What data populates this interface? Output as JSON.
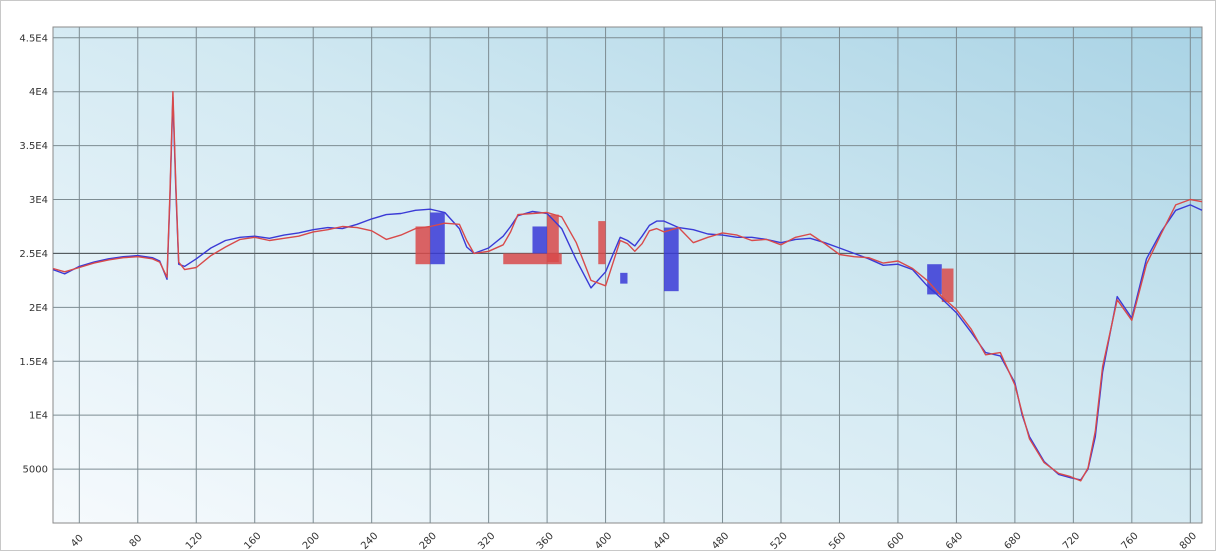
{
  "chart_data": {
    "type": "line",
    "title": "",
    "xlabel": "",
    "ylabel": "",
    "xlim": [
      22,
      808
    ],
    "ylim": [
      0,
      46000
    ],
    "grid": true,
    "legend": "none",
    "x_ticks": [
      "40",
      "80",
      "120",
      "160",
      "200",
      "240",
      "280",
      "320",
      "360",
      "400",
      "440",
      "480",
      "520",
      "560",
      "600",
      "640",
      "680",
      "720",
      "760",
      "800"
    ],
    "y_ticks": [
      "5000",
      "1E4",
      "1.5E4",
      "2E4",
      "2.5E4",
      "3E4",
      "3.5E4",
      "4E4",
      "4.5E4"
    ],
    "reference_line": 25000,
    "series": [
      {
        "color": "#3a3ad6",
        "x": [
          22,
          30,
          40,
          50,
          60,
          70,
          80,
          90,
          95,
          100,
          102,
          104,
          106,
          108,
          112,
          120,
          130,
          140,
          150,
          160,
          170,
          180,
          190,
          200,
          210,
          220,
          230,
          240,
          250,
          260,
          270,
          280,
          290,
          300,
          305,
          310,
          320,
          330,
          335,
          340,
          350,
          360,
          370,
          380,
          390,
          400,
          410,
          415,
          420,
          425,
          430,
          435,
          440,
          450,
          460,
          470,
          480,
          490,
          500,
          510,
          520,
          530,
          540,
          550,
          560,
          570,
          580,
          590,
          600,
          610,
          620,
          630,
          640,
          650,
          660,
          670,
          680,
          685,
          690,
          700,
          710,
          718,
          725,
          730,
          735,
          740,
          750,
          760,
          770,
          780,
          790,
          800,
          808
        ],
        "y": [
          23500,
          23100,
          23800,
          24200,
          24500,
          24700,
          24800,
          24600,
          24300,
          22600,
          30000,
          39500,
          31000,
          24000,
          23800,
          24500,
          25500,
          26200,
          26500,
          26600,
          26400,
          26700,
          26900,
          27200,
          27400,
          27300,
          27700,
          28200,
          28600,
          28700,
          29000,
          29100,
          28800,
          27300,
          25600,
          25000,
          25500,
          26600,
          27500,
          28500,
          28900,
          28700,
          27300,
          24400,
          21800,
          23300,
          26500,
          26200,
          25700,
          26600,
          27600,
          28000,
          28000,
          27400,
          27200,
          26800,
          26700,
          26500,
          26500,
          26300,
          26000,
          26300,
          26400,
          26000,
          25500,
          25000,
          24500,
          23900,
          24000,
          23500,
          22000,
          20800,
          19500,
          17700,
          15800,
          15500,
          13000,
          10000,
          8000,
          5700,
          4500,
          4200,
          4000,
          5000,
          8000,
          14000,
          21000,
          19000,
          24500,
          27000,
          29000,
          29500,
          29000
        ]
      },
      {
        "color": "#d84a4a",
        "x": [
          22,
          30,
          40,
          50,
          60,
          70,
          80,
          90,
          95,
          100,
          102,
          104,
          106,
          108,
          112,
          120,
          130,
          140,
          150,
          160,
          170,
          180,
          190,
          200,
          210,
          220,
          230,
          240,
          250,
          260,
          270,
          280,
          290,
          300,
          305,
          310,
          320,
          330,
          335,
          340,
          350,
          360,
          370,
          380,
          390,
          400,
          410,
          415,
          420,
          425,
          430,
          435,
          440,
          450,
          460,
          470,
          480,
          490,
          500,
          510,
          520,
          530,
          540,
          550,
          560,
          570,
          580,
          590,
          600,
          610,
          620,
          630,
          640,
          650,
          660,
          670,
          680,
          685,
          690,
          700,
          710,
          718,
          725,
          730,
          735,
          740,
          750,
          760,
          770,
          780,
          790,
          800,
          808
        ],
        "y": [
          23600,
          23300,
          23700,
          24100,
          24400,
          24600,
          24700,
          24500,
          24200,
          22800,
          30500,
          40000,
          31500,
          24200,
          23500,
          23700,
          24800,
          25600,
          26300,
          26500,
          26200,
          26400,
          26600,
          27000,
          27200,
          27500,
          27400,
          27100,
          26300,
          26700,
          27300,
          27500,
          27800,
          27700,
          26200,
          25000,
          25200,
          25800,
          27000,
          28600,
          28700,
          28800,
          28400,
          26000,
          22500,
          22000,
          26200,
          25900,
          25200,
          25900,
          27100,
          27300,
          27000,
          27400,
          26000,
          26500,
          26900,
          26700,
          26200,
          26300,
          25800,
          26500,
          26800,
          25900,
          24900,
          24700,
          24600,
          24100,
          24300,
          23600,
          22500,
          21000,
          19800,
          18000,
          15600,
          15800,
          12800,
          10200,
          7800,
          5600,
          4600,
          4300,
          3900,
          5100,
          8500,
          14500,
          20700,
          18800,
          24000,
          26800,
          29500,
          30000,
          29800
        ]
      }
    ],
    "shaded_regions": [
      {
        "color": "#3a3ad6",
        "x0": 280,
        "x1": 290,
        "y0": 24000,
        "y1": 28800
      },
      {
        "color": "#d84a4a",
        "x0": 270,
        "x1": 280,
        "y0": 24000,
        "y1": 27500
      },
      {
        "color": "#d84a4a",
        "x0": 330,
        "x1": 370,
        "y0": 24000,
        "y1": 25000
      },
      {
        "color": "#3a3ad6",
        "x0": 350,
        "x1": 360,
        "y0": 25000,
        "y1": 27500
      },
      {
        "color": "#d84a4a",
        "x0": 360,
        "x1": 368,
        "y0": 24200,
        "y1": 28600
      },
      {
        "color": "#d84a4a",
        "x0": 395,
        "x1": 400,
        "y0": 24000,
        "y1": 28000
      },
      {
        "color": "#3a3ad6",
        "x0": 410,
        "x1": 415,
        "y0": 22200,
        "y1": 23200
      },
      {
        "color": "#3a3ad6",
        "x0": 440,
        "x1": 450,
        "y0": 21500,
        "y1": 27400
      },
      {
        "color": "#3a3ad6",
        "x0": 620,
        "x1": 630,
        "y0": 21200,
        "y1": 24000
      },
      {
        "color": "#d84a4a",
        "x0": 630,
        "x1": 638,
        "y0": 20500,
        "y1": 23600
      }
    ]
  }
}
